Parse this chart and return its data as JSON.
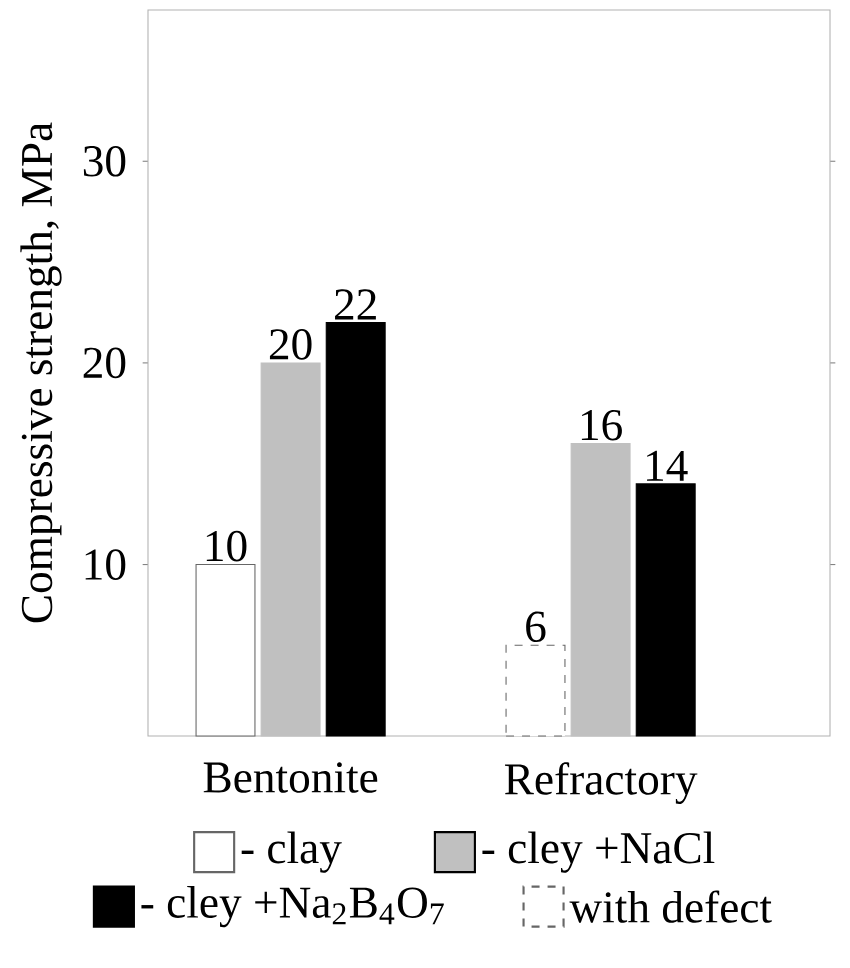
{
  "chart_data": {
    "type": "bar",
    "ylabel": "Compressive strength, MPa",
    "categories": [
      "Bentonite",
      "Refractory"
    ],
    "series": [
      {
        "name": "- clay",
        "color": "#ffffff",
        "values": [
          10,
          null
        ]
      },
      {
        "name": "with defect",
        "color": "#ffffff",
        "line_style": "dashed",
        "values": [
          null,
          6
        ]
      },
      {
        "name": "- cley +NaCl",
        "color": "#c0c0c0",
        "values": [
          20,
          16
        ]
      },
      {
        "name": "- cley +Na$_{2}$B$_{4}$O$_{7}$",
        "color": "#000000",
        "values": [
          22,
          14
        ]
      }
    ],
    "ylim": [
      1.5,
      37.5
    ],
    "yticks": [
      10,
      20,
      30
    ],
    "data_labels": true,
    "legend": "bottom",
    "grid": false
  }
}
